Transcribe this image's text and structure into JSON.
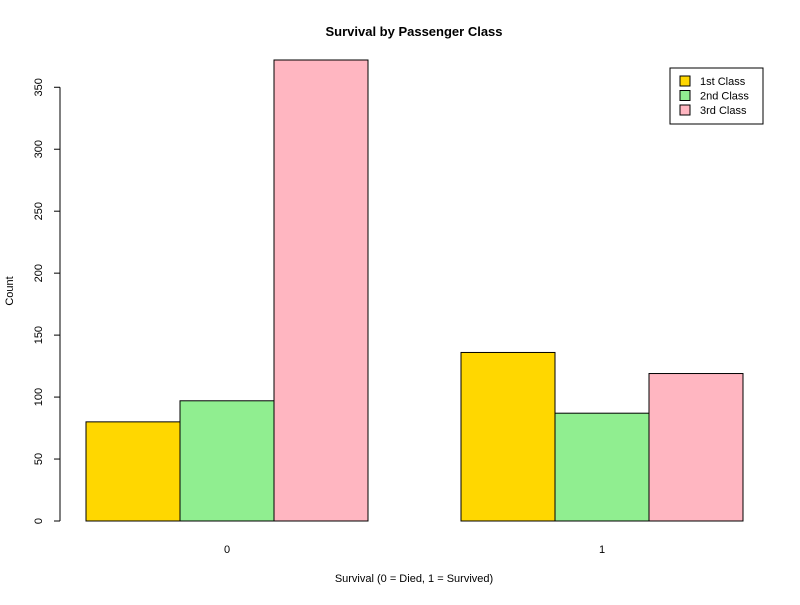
{
  "chart_data": {
    "type": "bar",
    "title": "Survival by Passenger Class",
    "xlabel": "Survival (0 = Died, 1 = Survived)",
    "ylabel": "Count",
    "categories": [
      "0",
      "1"
    ],
    "series": [
      {
        "name": "1st Class",
        "color": "#FFD700",
        "values": [
          80,
          136
        ]
      },
      {
        "name": "2nd Class",
        "color": "#90EE90",
        "values": [
          97,
          87
        ]
      },
      {
        "name": "3rd Class",
        "color": "#FFB6C1",
        "values": [
          372,
          119
        ]
      }
    ],
    "yticks": [
      0,
      50,
      100,
      150,
      200,
      250,
      300,
      350
    ],
    "ylim": [
      0,
      372
    ],
    "legend_position": "top-right",
    "grid": false
  }
}
